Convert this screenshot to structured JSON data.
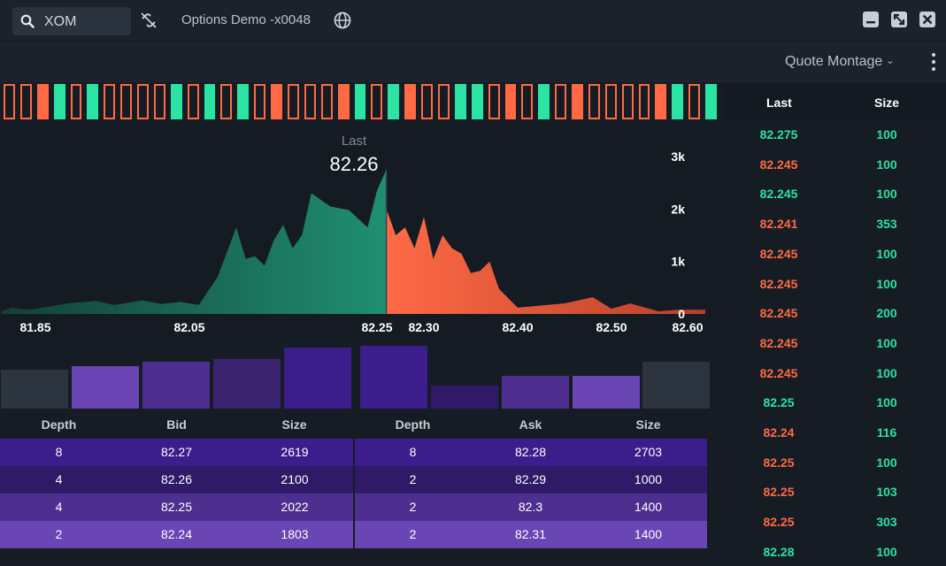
{
  "header": {
    "symbol": "XOM",
    "account": "Options Demo -x0048"
  },
  "subheader": {
    "view_label": "Quote Montage",
    "view_chevron": "⌄"
  },
  "colors": {
    "buy": "#2be3a3",
    "sell": "#ff6a45",
    "bid_fill": "#1e8a6c",
    "ask_fill": "#ff6a45",
    "bg": "#161c24"
  },
  "icons": [
    "search-icon",
    "unlink-icon",
    "globe-icon",
    "minimize-icon",
    "maximize-icon",
    "close-icon",
    "kebab-menu-icon",
    "chevron-down-icon"
  ],
  "tape": [
    "sell-o",
    "sell-o",
    "sell",
    "buy",
    "sell-o",
    "buy",
    "sell-o",
    "sell-o",
    "sell-o",
    "sell-o",
    "buy",
    "sell-o",
    "buy",
    "sell-o",
    "buy",
    "sell-o",
    "sell",
    "sell-o",
    "sell-o",
    "sell-o",
    "sell",
    "buy",
    "sell-o",
    "buy",
    "sell",
    "sell-o",
    "sell-o",
    "buy",
    "buy",
    "sell-o",
    "sell",
    "sell-o",
    "buy",
    "sell-o",
    "sell",
    "sell-o",
    "sell-o",
    "sell-o",
    "sell-o",
    "sell",
    "buy",
    "sell-o",
    "buy"
  ],
  "chart_data": {
    "type": "area",
    "title": "",
    "last_label": "Last",
    "last_value": "82.26",
    "xlim": [
      81.85,
      82.6
    ],
    "ylim": [
      0,
      3000
    ],
    "x_ticks": [
      "81.85",
      "82.05",
      "82.25",
      "82.30",
      "82.40",
      "82.50",
      "82.60"
    ],
    "y_ticks": [
      "3k",
      "2k",
      "1k",
      "0"
    ],
    "y_tick_values": [
      3000,
      2000,
      1000,
      0
    ],
    "x_tick_values": [
      81.85,
      82.05,
      82.25,
      82.3,
      82.4,
      82.5,
      82.6
    ],
    "split_price": 82.26,
    "series": [
      {
        "name": "Bid",
        "x": [
          81.85,
          81.86,
          81.88,
          81.9,
          81.92,
          81.95,
          81.97,
          82.0,
          82.02,
          82.04,
          82.06,
          82.08,
          82.1,
          82.11,
          82.12,
          82.13,
          82.14,
          82.15,
          82.16,
          82.17,
          82.18,
          82.2,
          82.22,
          82.24,
          82.25,
          82.26
        ],
        "y": [
          50,
          120,
          80,
          140,
          200,
          250,
          170,
          260,
          190,
          230,
          170,
          700,
          1650,
          1050,
          1100,
          920,
          1400,
          1700,
          1250,
          1500,
          2300,
          2050,
          1980,
          1650,
          2350,
          2750
        ]
      },
      {
        "name": "Ask",
        "x": [
          82.26,
          82.27,
          82.28,
          82.29,
          82.3,
          82.31,
          82.32,
          82.33,
          82.34,
          82.35,
          82.36,
          82.37,
          82.38,
          82.4,
          82.45,
          82.48,
          82.5,
          82.52,
          82.55,
          82.57,
          82.6
        ],
        "y": [
          2000,
          1500,
          1650,
          1250,
          1850,
          1050,
          1500,
          1250,
          1150,
          780,
          820,
          1000,
          480,
          120,
          200,
          320,
          100,
          200,
          50,
          80,
          80
        ]
      }
    ]
  },
  "depth_bars": {
    "bid_sizes": [
      1803,
      2022,
      2100,
      2619
    ],
    "ask_sizes": [
      2703,
      1000,
      1400,
      1400
    ],
    "max": 2800
  },
  "order_book": {
    "bid_headers": [
      "Depth",
      "Bid",
      "Size"
    ],
    "ask_headers": [
      "Depth",
      "Ask",
      "Size"
    ],
    "rows": [
      {
        "bid_depth": "8",
        "bid": "82.27",
        "bid_size": "2619",
        "ask_depth": "8",
        "ask": "82.28",
        "ask_size": "2703"
      },
      {
        "bid_depth": "4",
        "bid": "82.26",
        "bid_size": "2100",
        "ask_depth": "2",
        "ask": "82.29",
        "ask_size": "1000"
      },
      {
        "bid_depth": "4",
        "bid": "82.25",
        "bid_size": "2022",
        "ask_depth": "2",
        "ask": "82.3",
        "ask_size": "1400"
      },
      {
        "bid_depth": "2",
        "bid": "82.24",
        "bid_size": "1803",
        "ask_depth": "2",
        "ask": "82.31",
        "ask_size": "1400"
      }
    ]
  },
  "time_sales": {
    "headers": [
      "Last",
      "Size"
    ],
    "rows": [
      {
        "last": "82.275",
        "size": "100",
        "side": "buy"
      },
      {
        "last": "82.245",
        "size": "100",
        "side": "sell"
      },
      {
        "last": "82.245",
        "size": "100",
        "side": "buy"
      },
      {
        "last": "82.241",
        "size": "353",
        "side": "sell"
      },
      {
        "last": "82.245",
        "size": "100",
        "side": "sell"
      },
      {
        "last": "82.245",
        "size": "100",
        "side": "sell"
      },
      {
        "last": "82.245",
        "size": "200",
        "side": "sell"
      },
      {
        "last": "82.245",
        "size": "100",
        "side": "sell"
      },
      {
        "last": "82.245",
        "size": "100",
        "side": "sell"
      },
      {
        "last": "82.25",
        "size": "100",
        "side": "buy"
      },
      {
        "last": "82.24",
        "size": "116",
        "side": "sell"
      },
      {
        "last": "82.25",
        "size": "100",
        "side": "sell"
      },
      {
        "last": "82.25",
        "size": "103",
        "side": "sell"
      },
      {
        "last": "82.25",
        "size": "303",
        "side": "sell"
      },
      {
        "last": "82.28",
        "size": "100",
        "side": "buy"
      }
    ]
  }
}
